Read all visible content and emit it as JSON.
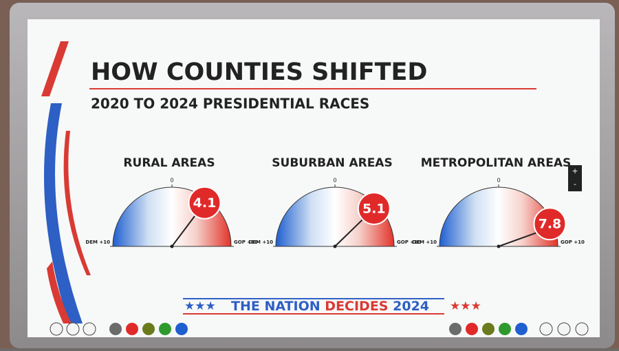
{
  "header": {
    "title": "HOW COUNTIES SHIFTED",
    "subtitle": "2020 TO 2024 PRESIDENTIAL RACES"
  },
  "scale": {
    "lim": [
      -10,
      10
    ],
    "ticks": [
      {
        "value": -10,
        "label": "DEM +10"
      },
      0,
      {
        "value": 10,
        "label": "GOP +10"
      }
    ]
  },
  "gauges": [
    {
      "label": "RURAL AREAS",
      "value": 4.1
    },
    {
      "label": "SUBURBAN AREAS",
      "value": 5.1
    },
    {
      "label": "METROPOLITAN AREAS",
      "value": 7.8
    }
  ],
  "footer": {
    "parts": [
      "THE NATION",
      "DECIDES",
      "2024"
    ]
  },
  "zoom": {
    "plus": "+",
    "minus": "-"
  }
}
